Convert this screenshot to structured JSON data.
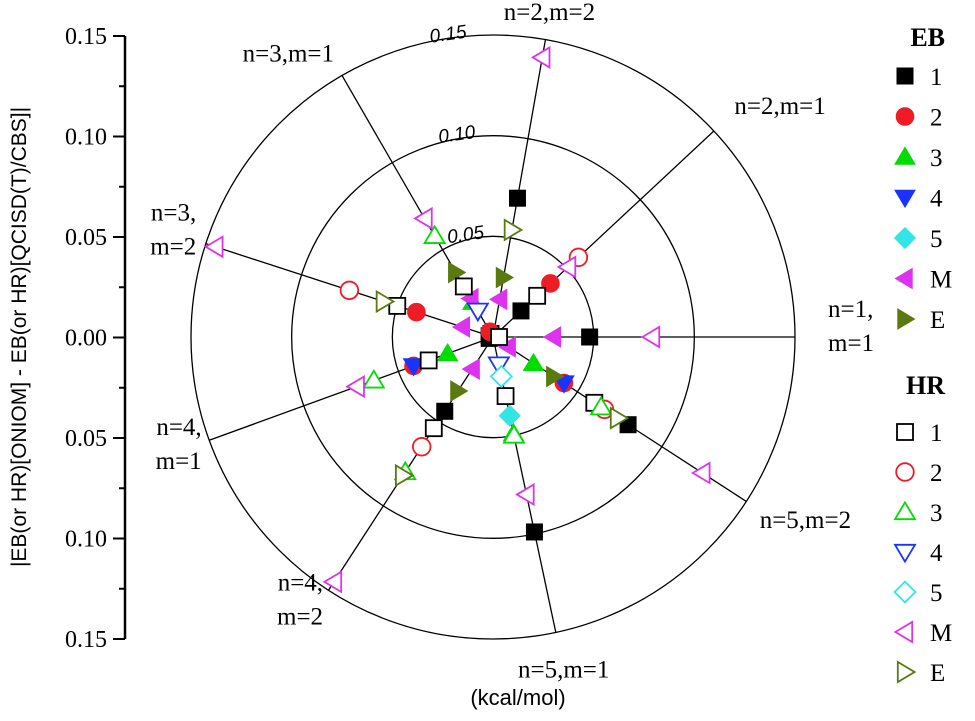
{
  "chart_data": {
    "type": "polar-scatter",
    "ylabel": "|EB(or HR)[ONIOM] - EB(or HR)[QCISD(T)/CBS]|",
    "unit_label": "(kcal/mol)",
    "y_ticks": [
      "0.15",
      "0.10",
      "0.05",
      "0.00",
      "0.05",
      "0.10",
      "0.15"
    ],
    "r_max": 0.15,
    "rings": [
      {
        "r": 0.05,
        "label": "0.05"
      },
      {
        "r": 0.1,
        "label": "0.10"
      },
      {
        "r": 0.15,
        "label": "0.15"
      }
    ],
    "spokes": [
      {
        "key": "n1m1",
        "angle": 0,
        "label_lines": [
          "n=1,",
          "m=1"
        ]
      },
      {
        "key": "n2m1",
        "angle": 43,
        "label_lines": [
          "n=2,m=1"
        ]
      },
      {
        "key": "n2m2",
        "angle": 80,
        "label_lines": [
          "n=2,m=2"
        ]
      },
      {
        "key": "n3m1",
        "angle": 120,
        "label_lines": [
          "n=3,m=1"
        ]
      },
      {
        "key": "n3m2",
        "angle": 162,
        "label_lines": [
          "n=3,",
          "m=2"
        ]
      },
      {
        "key": "n4m1",
        "angle": 200,
        "label_lines": [
          "n=4,",
          "m=1"
        ]
      },
      {
        "key": "n4m2",
        "angle": 237,
        "label_lines": [
          "n=4,",
          "m=2"
        ]
      },
      {
        "key": "n5m1",
        "angle": 282,
        "label_lines": [
          "n=5,m=1"
        ]
      },
      {
        "key": "n5m2",
        "angle": 327,
        "label_lines": [
          "n=5,m=2"
        ]
      }
    ],
    "legend": {
      "eb_title": "EB",
      "hr_title": "HR",
      "entries": [
        "1",
        "2",
        "3",
        "4",
        "5",
        "M",
        "E"
      ]
    },
    "styles": {
      "1": {
        "shape": "square",
        "color": "#000000"
      },
      "2": {
        "shape": "circle",
        "color": "#ee1c24"
      },
      "3": {
        "shape": "triangle-up",
        "color": "#00dd00"
      },
      "4": {
        "shape": "triangle-down",
        "color": "#1a33ff"
      },
      "5": {
        "shape": "diamond",
        "color": "#33e5e5"
      },
      "M": {
        "shape": "triangle-left",
        "color": "#dd33ee"
      },
      "E": {
        "shape": "triangle-right",
        "color": "#5a7a10"
      }
    },
    "series": [
      {
        "group": "EB",
        "name": "1",
        "points": [
          {
            "spoke": "n1m1",
            "r": 0.048
          },
          {
            "spoke": "n2m1",
            "r": 0.019
          },
          {
            "spoke": "n2m2",
            "r": 0.07
          },
          {
            "spoke": "n3m1",
            "r": 0.002
          },
          {
            "spoke": "n3m2",
            "r": 0.002
          },
          {
            "spoke": "n4m1",
            "r": 0.002
          },
          {
            "spoke": "n4m2",
            "r": 0.044
          },
          {
            "spoke": "n5m1",
            "r": 0.099
          },
          {
            "spoke": "n5m2",
            "r": 0.08
          }
        ]
      },
      {
        "group": "EB",
        "name": "2",
        "points": [
          {
            "spoke": "n2m1",
            "r": 0.039
          },
          {
            "spoke": "n3m2",
            "r": 0.04
          },
          {
            "spoke": "n5m2",
            "r": 0.042
          },
          {
            "spoke": "n4m1",
            "r": 0.042
          },
          {
            "spoke": "n3m1",
            "r": 0.003
          }
        ]
      },
      {
        "group": "EB",
        "name": "3",
        "points": [
          {
            "spoke": "n3m1",
            "r": 0.02
          },
          {
            "spoke": "n4m1",
            "r": 0.024
          },
          {
            "spoke": "n5m2",
            "r": 0.024
          },
          {
            "spoke": "n5m1",
            "r": 0.049
          }
        ]
      },
      {
        "group": "EB",
        "name": "4",
        "points": [
          {
            "spoke": "n4m1",
            "r": 0.042
          },
          {
            "spoke": "n5m2",
            "r": 0.042
          }
        ]
      },
      {
        "group": "EB",
        "name": "5",
        "points": [
          {
            "spoke": "n5m1",
            "r": 0.04
          }
        ]
      },
      {
        "group": "EB",
        "name": "M",
        "points": [
          {
            "spoke": "n1m1",
            "r": 0.03
          },
          {
            "spoke": "n2m2",
            "r": 0.019
          },
          {
            "spoke": "n3m1",
            "r": 0.022
          },
          {
            "spoke": "n3m2",
            "r": 0.016
          },
          {
            "spoke": "n4m2",
            "r": 0.019
          },
          {
            "spoke": "n5m2",
            "r": 0.009
          }
        ]
      },
      {
        "group": "EB",
        "name": "E",
        "points": [
          {
            "spoke": "n2m2",
            "r": 0.03
          },
          {
            "spoke": "n3m1",
            "r": 0.037
          },
          {
            "spoke": "n4m2",
            "r": 0.032
          },
          {
            "spoke": "n5m2",
            "r": 0.036
          }
        ]
      },
      {
        "group": "HR",
        "name": "1",
        "points": [
          {
            "spoke": "n1m1",
            "r": 0.003
          },
          {
            "spoke": "n2m1",
            "r": 0.03
          },
          {
            "spoke": "n3m1",
            "r": 0.029
          },
          {
            "spoke": "n3m2",
            "r": 0.05
          },
          {
            "spoke": "n4m1",
            "r": 0.034
          },
          {
            "spoke": "n4m2",
            "r": 0.054
          },
          {
            "spoke": "n5m1",
            "r": 0.03
          },
          {
            "spoke": "n5m2",
            "r": 0.06
          }
        ]
      },
      {
        "group": "HR",
        "name": "2",
        "points": [
          {
            "spoke": "n2m1",
            "r": 0.058
          },
          {
            "spoke": "n3m2",
            "r": 0.075
          },
          {
            "spoke": "n4m2",
            "r": 0.065
          },
          {
            "spoke": "n5m2",
            "r": 0.066
          }
        ]
      },
      {
        "group": "HR",
        "name": "3",
        "points": [
          {
            "spoke": "n3m1",
            "r": 0.058
          },
          {
            "spoke": "n4m1",
            "r": 0.063
          },
          {
            "spoke": "n4m2",
            "r": 0.08
          },
          {
            "spoke": "n5m1",
            "r": 0.05
          },
          {
            "spoke": "n5m2",
            "r": 0.064
          }
        ]
      },
      {
        "group": "HR",
        "name": "4",
        "points": [
          {
            "spoke": "n3m1",
            "r": 0.015
          },
          {
            "spoke": "n5m1",
            "r": 0.014
          }
        ]
      },
      {
        "group": "HR",
        "name": "5",
        "points": [
          {
            "spoke": "n5m1",
            "r": 0.02
          }
        ]
      },
      {
        "group": "HR",
        "name": "M",
        "points": [
          {
            "spoke": "n1m1",
            "r": 0.079
          },
          {
            "spoke": "n2m1",
            "r": 0.051
          },
          {
            "spoke": "n2m2",
            "r": 0.141
          },
          {
            "spoke": "n3m1",
            "r": 0.068
          },
          {
            "spoke": "n3m2",
            "r": 0.145
          },
          {
            "spoke": "n4m1",
            "r": 0.072
          },
          {
            "spoke": "n4m2",
            "r": 0.145
          },
          {
            "spoke": "n5m1",
            "r": 0.08
          },
          {
            "spoke": "n5m2",
            "r": 0.124
          }
        ]
      },
      {
        "group": "HR",
        "name": "E",
        "points": [
          {
            "spoke": "n2m2",
            "r": 0.054
          },
          {
            "spoke": "n3m2",
            "r": 0.057
          },
          {
            "spoke": "n4m2",
            "r": 0.082
          },
          {
            "spoke": "n5m2",
            "r": 0.074
          }
        ]
      }
    ]
  }
}
